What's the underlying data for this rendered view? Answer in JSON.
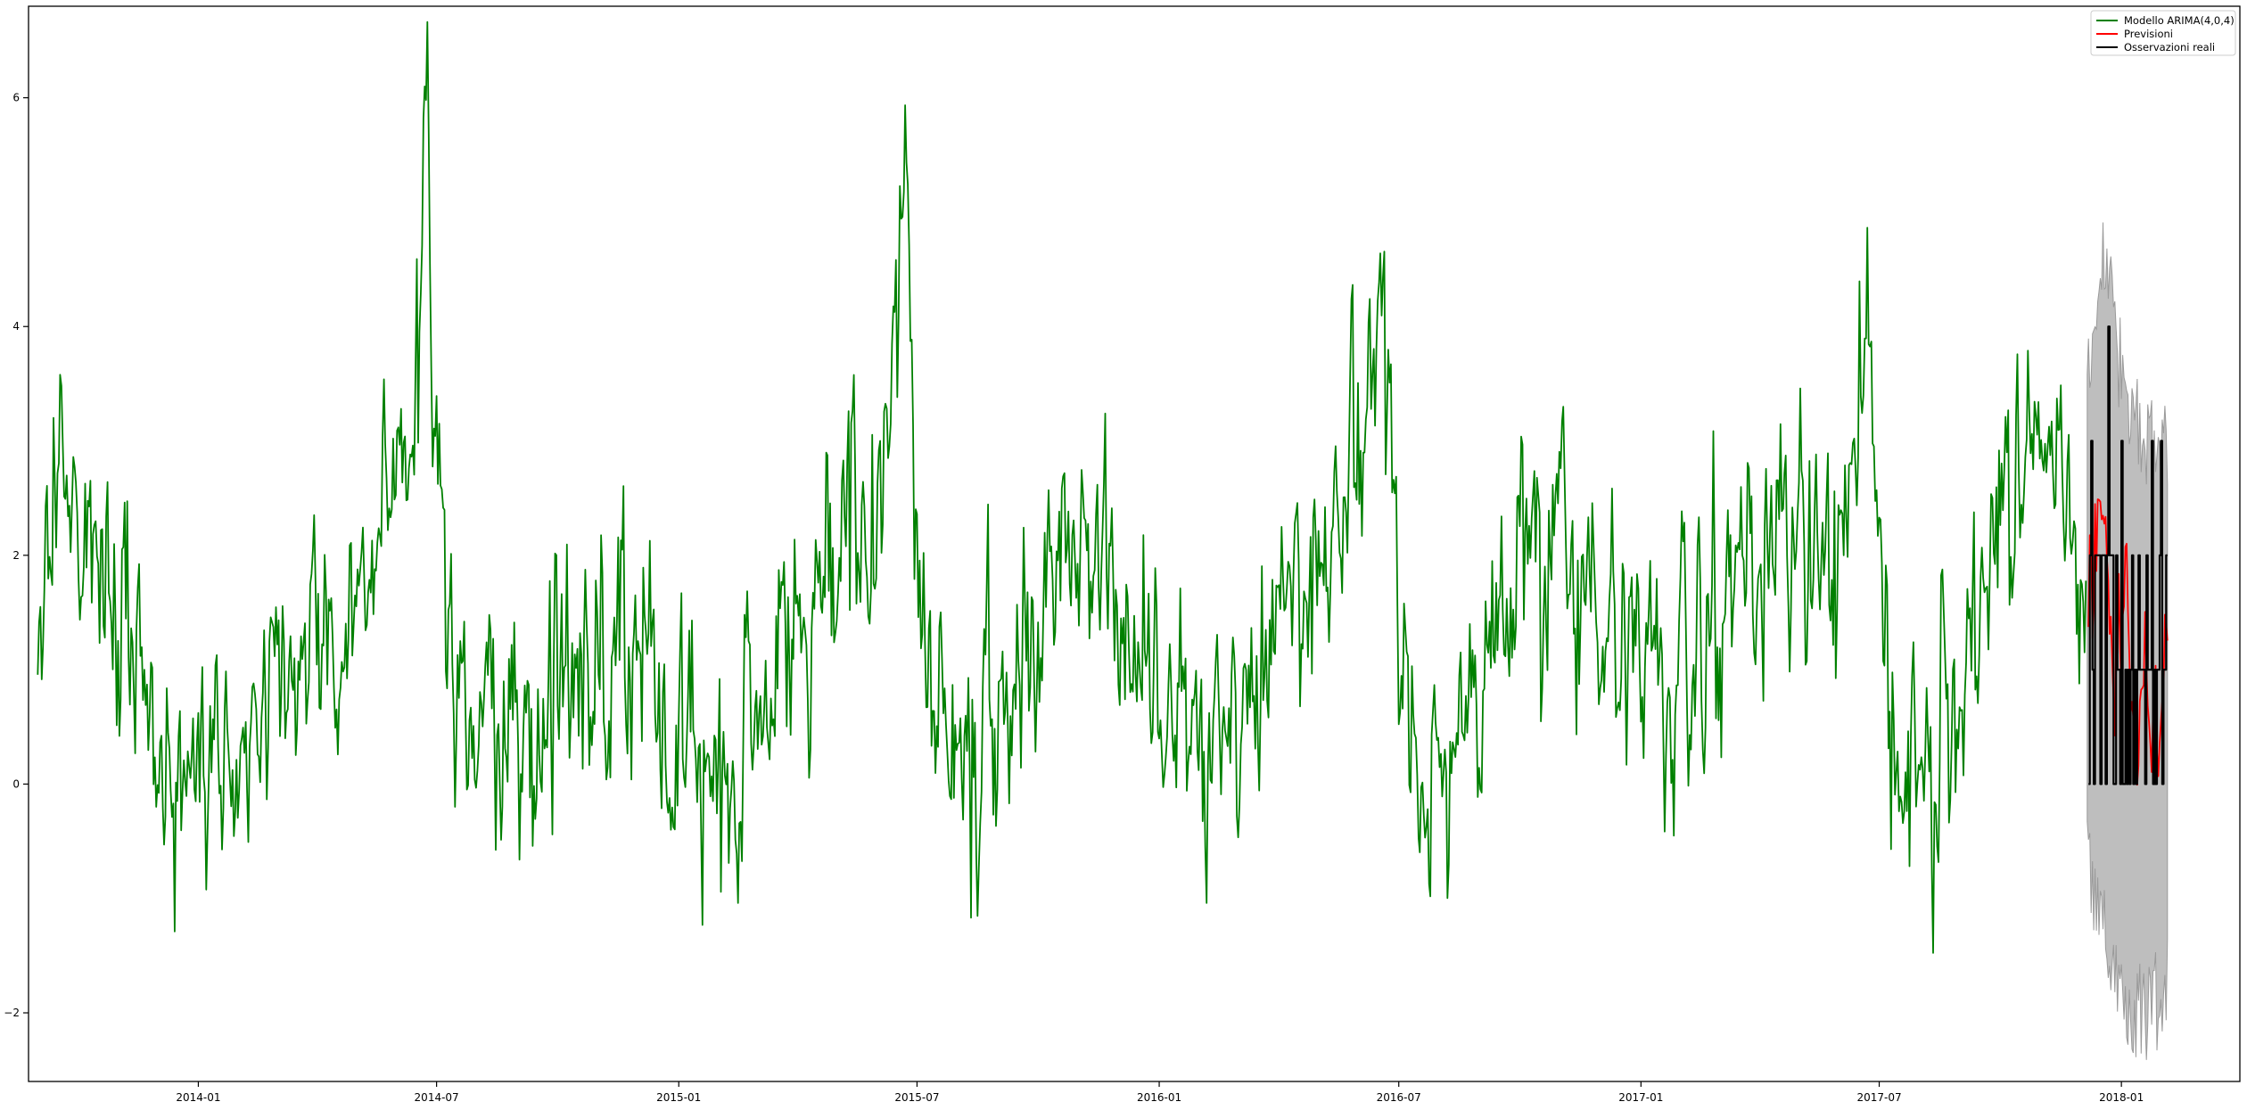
{
  "chart_data": {
    "type": "line",
    "title": "",
    "xlabel": "",
    "ylabel": "",
    "xlim": [
      "2013-08-25",
      "2018-04-01"
    ],
    "ylim": [
      -2.6,
      6.8
    ],
    "x_ticks": [
      "2014-01",
      "2014-07",
      "2015-01",
      "2015-07",
      "2016-01",
      "2016-07",
      "2017-01",
      "2017-07",
      "2018-01"
    ],
    "y_ticks": [
      -2,
      0,
      2,
      4,
      6
    ],
    "grid": false,
    "legend_position": "top-right",
    "series": [
      {
        "name": "Modello ARIMA(4,0,4)",
        "color": "#008000",
        "style": "line",
        "noise_sd": 0.5,
        "anchors": [
          [
            "2013-09-01",
            0.8
          ],
          [
            "2013-09-08",
            2.6
          ],
          [
            "2013-09-15",
            2.4
          ],
          [
            "2013-10-01",
            2.2
          ],
          [
            "2013-10-20",
            2.0
          ],
          [
            "2013-11-10",
            1.2
          ],
          [
            "2013-12-01",
            0.4
          ],
          [
            "2013-12-15",
            0.0
          ],
          [
            "2014-01-05",
            0.0
          ],
          [
            "2014-02-01",
            0.3
          ],
          [
            "2014-03-01",
            0.8
          ],
          [
            "2014-04-01",
            1.2
          ],
          [
            "2014-05-01",
            1.3
          ],
          [
            "2014-05-25",
            2.2
          ],
          [
            "2014-06-10",
            3.2
          ],
          [
            "2014-06-24",
            5.6
          ],
          [
            "2014-07-02",
            2.2
          ],
          [
            "2014-07-15",
            0.7
          ],
          [
            "2014-08-15",
            0.3
          ],
          [
            "2014-09-15",
            0.4
          ],
          [
            "2014-10-15",
            1.0
          ],
          [
            "2014-11-15",
            1.3
          ],
          [
            "2014-12-15",
            0.9
          ],
          [
            "2015-01-15",
            0.4
          ],
          [
            "2015-02-15",
            0.1
          ],
          [
            "2015-03-15",
            0.8
          ],
          [
            "2015-04-15",
            1.7
          ],
          [
            "2015-05-15",
            2.1
          ],
          [
            "2015-06-10",
            3.2
          ],
          [
            "2015-06-22",
            5.0
          ],
          [
            "2015-07-01",
            1.7
          ],
          [
            "2015-07-15",
            0.1
          ],
          [
            "2015-08-15",
            0.4
          ],
          [
            "2015-09-15",
            0.9
          ],
          [
            "2015-10-15",
            1.9
          ],
          [
            "2015-11-15",
            1.9
          ],
          [
            "2015-12-15",
            1.2
          ],
          [
            "2016-01-15",
            0.5
          ],
          [
            "2016-02-15",
            0.5
          ],
          [
            "2016-03-15",
            0.8
          ],
          [
            "2016-04-15",
            1.6
          ],
          [
            "2016-05-15",
            2.0
          ],
          [
            "2016-06-05",
            2.9
          ],
          [
            "2016-06-22",
            4.2
          ],
          [
            "2016-07-01",
            1.6
          ],
          [
            "2016-07-15",
            0.2
          ],
          [
            "2016-08-15",
            0.4
          ],
          [
            "2016-09-15",
            1.3
          ],
          [
            "2016-10-15",
            2.2
          ],
          [
            "2016-11-15",
            1.9
          ],
          [
            "2016-12-15",
            1.3
          ],
          [
            "2017-01-15",
            0.8
          ],
          [
            "2017-02-15",
            1.0
          ],
          [
            "2017-03-15",
            1.7
          ],
          [
            "2017-04-15",
            2.0
          ],
          [
            "2017-05-15",
            1.9
          ],
          [
            "2017-06-10",
            2.6
          ],
          [
            "2017-06-22",
            4.6
          ],
          [
            "2017-07-01",
            1.6
          ],
          [
            "2017-07-15",
            0.1
          ],
          [
            "2017-08-15",
            0.2
          ],
          [
            "2017-09-15",
            1.2
          ],
          [
            "2017-10-15",
            2.8
          ],
          [
            "2017-11-15",
            2.5
          ],
          [
            "2017-12-05",
            1.2
          ]
        ]
      },
      {
        "name": "Previsioni",
        "color": "#ff0000",
        "style": "line",
        "noise_sd": 0.4,
        "anchors": [
          [
            "2017-12-07",
            1.6
          ],
          [
            "2017-12-15",
            2.2
          ],
          [
            "2017-12-25",
            1.8
          ],
          [
            "2018-01-05",
            1.0
          ],
          [
            "2018-01-15",
            0.6
          ],
          [
            "2018-01-25",
            0.8
          ],
          [
            "2018-02-05",
            1.0
          ]
        ]
      },
      {
        "name": "Osservazioni reali",
        "color": "#000000",
        "style": "step",
        "levels": [
          0,
          1,
          2,
          3,
          4
        ],
        "anchors": [
          [
            "2017-12-07",
            1.2
          ],
          [
            "2017-12-20",
            2.0
          ],
          [
            "2018-01-05",
            1.0
          ],
          [
            "2018-01-20",
            0.9
          ],
          [
            "2018-02-05",
            1.0
          ]
        ]
      }
    ],
    "confidence_band": {
      "fill_color": "#bebebe",
      "x_range": [
        "2017-12-06",
        "2018-02-05"
      ],
      "upper": [
        [
          "2017-12-06",
          3.8
        ],
        [
          "2017-12-20",
          4.6
        ],
        [
          "2018-01-05",
          3.2
        ],
        [
          "2018-01-20",
          3.0
        ],
        [
          "2018-02-05",
          3.0
        ]
      ],
      "lower": [
        [
          "2017-12-06",
          -0.6
        ],
        [
          "2017-12-20",
          -1.4
        ],
        [
          "2018-01-05",
          -1.9
        ],
        [
          "2018-01-20",
          -2.0
        ],
        [
          "2018-02-05",
          -1.8
        ]
      ]
    }
  }
}
